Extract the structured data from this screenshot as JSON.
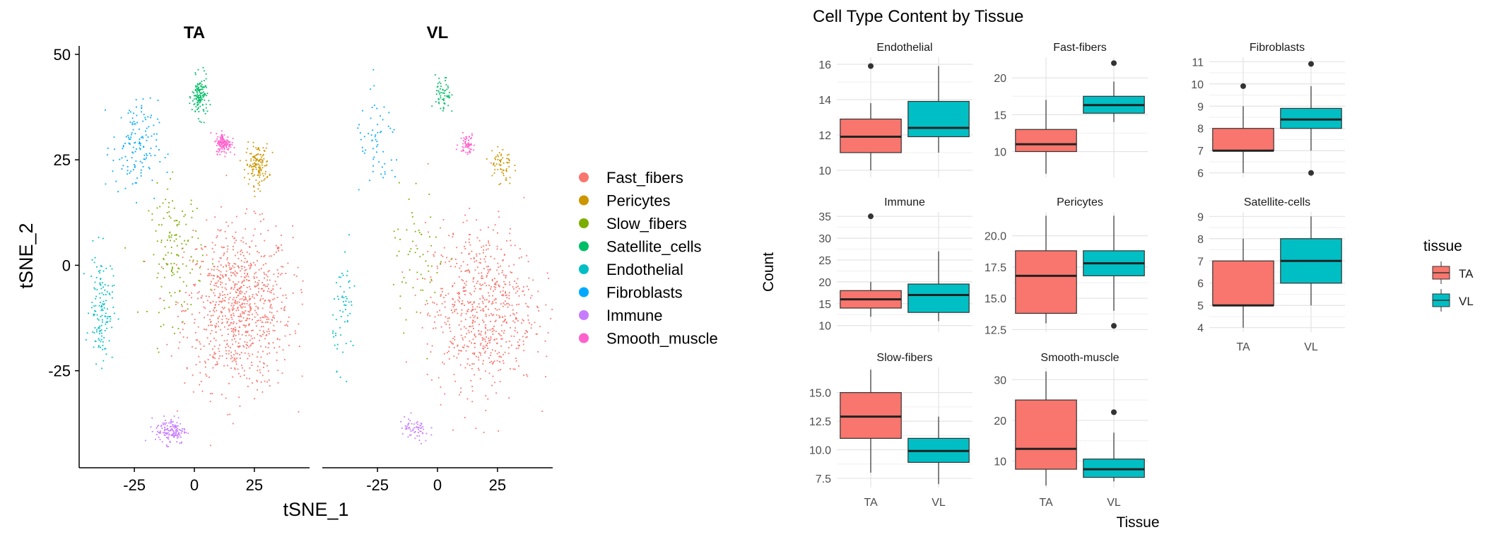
{
  "colors": {
    "Fast_fibers": "#F8766D",
    "Pericytes": "#CD9600",
    "Slow_fibers": "#7CAE00",
    "Satellite_cells": "#00BE67",
    "Endothelial": "#00BFC4",
    "Fibroblasts": "#00A9FF",
    "Immune": "#C77CFF",
    "Smooth_muscle": "#FF61CC",
    "TA": "#F8766D",
    "VL": "#00BFC4"
  },
  "chart_data": [
    {
      "type": "scatter",
      "facets": [
        "TA",
        "VL"
      ],
      "xlabel": "tSNE_1",
      "ylabel": "tSNE_2",
      "xticks": [
        -25,
        0,
        25
      ],
      "yticks": [
        50,
        25,
        0,
        -25
      ],
      "xlim": [
        -48,
        48
      ],
      "ylim": [
        -48,
        52
      ],
      "legend_position": "right",
      "legend": [
        "Fast_fibers",
        "Pericytes",
        "Slow_fibers",
        "Satellite_cells",
        "Endothelial",
        "Fibroblasts",
        "Immune",
        "Smooth_muscle"
      ],
      "clusters": [
        {
          "name": "Fast_fibers",
          "cx": 18,
          "cy": -10,
          "sx": 14,
          "sy": 12
        },
        {
          "name": "Pericytes",
          "cx": 26,
          "cy": 24,
          "sx": 3,
          "sy": 3
        },
        {
          "name": "Slow_fibers",
          "cx": -8,
          "cy": 3,
          "sx": 7,
          "sy": 10
        },
        {
          "name": "Satellite_cells",
          "cx": 2,
          "cy": 40,
          "sx": 2,
          "sy": 3
        },
        {
          "name": "Endothelial",
          "cx": -39,
          "cy": -10,
          "sx": 3,
          "sy": 8
        },
        {
          "name": "Fibroblasts",
          "cx": -25,
          "cy": 28,
          "sx": 6,
          "sy": 7
        },
        {
          "name": "Immune",
          "cx": -10,
          "cy": -39,
          "sx": 4,
          "sy": 2
        },
        {
          "name": "Smooth_muscle",
          "cx": 12,
          "cy": 29,
          "sx": 2,
          "sy": 1.5
        }
      ]
    },
    {
      "type": "box",
      "title": "Cell Type Content by Tissue",
      "xlabel": "Tissue",
      "ylabel": "Count",
      "categories": [
        "TA",
        "VL"
      ],
      "legend_title": "tissue",
      "legend": [
        "TA",
        "VL"
      ],
      "legend_position": "right",
      "panels": [
        {
          "name": "Endothelial",
          "yticks": [
            10,
            12,
            14,
            16
          ],
          "ylim": [
            9.6,
            16.4
          ],
          "TA": {
            "min": 10,
            "q1": 11,
            "median": 11.9,
            "q3": 12.9,
            "max": 13.8,
            "outliers": [
              15.9
            ]
          },
          "VL": {
            "min": 11,
            "q1": 11.9,
            "median": 12.4,
            "q3": 13.9,
            "max": 15.9,
            "outliers": []
          }
        },
        {
          "name": "Fast-fibers",
          "yticks": [
            10,
            15,
            20
          ],
          "ylim": [
            6.5,
            22.8
          ],
          "TA": {
            "min": 7,
            "q1": 10,
            "median": 11,
            "q3": 13,
            "max": 17,
            "outliers": []
          },
          "VL": {
            "min": 14,
            "q1": 15.2,
            "median": 16.3,
            "q3": 17.5,
            "max": 19.5,
            "outliers": [
              22
            ]
          }
        },
        {
          "name": "Fibroblasts",
          "yticks": [
            6,
            7,
            8,
            9,
            10,
            11
          ],
          "ylim": [
            5.8,
            11.2
          ],
          "TA": {
            "min": 6,
            "q1": 7,
            "median": 7,
            "q3": 8,
            "max": 9,
            "outliers": [
              9.9
            ]
          },
          "VL": {
            "min": 7,
            "q1": 8,
            "median": 8.4,
            "q3": 8.9,
            "max": 9.9,
            "outliers": [
              6,
              10.9
            ]
          }
        },
        {
          "name": "Immune",
          "yticks": [
            10,
            15,
            20,
            25,
            30,
            35
          ],
          "ylim": [
            8.5,
            36
          ],
          "TA": {
            "min": 12,
            "q1": 14,
            "median": 16,
            "q3": 18,
            "max": 20,
            "outliers": [
              35
            ]
          },
          "VL": {
            "min": 11,
            "q1": 13,
            "median": 17,
            "q3": 19.5,
            "max": 27,
            "outliers": []
          }
        },
        {
          "name": "Pericytes",
          "yticks": [
            12.5,
            15.0,
            17.5,
            20.0
          ],
          "ylim": [
            12.3,
            21.9
          ],
          "TA": {
            "min": 13,
            "q1": 13.8,
            "median": 16.8,
            "q3": 18.8,
            "max": 21.6,
            "outliers": []
          },
          "VL": {
            "min": 14,
            "q1": 16.8,
            "median": 17.8,
            "q3": 18.8,
            "max": 21.6,
            "outliers": [
              12.8
            ]
          }
        },
        {
          "name": "Satellite-cells",
          "yticks": [
            4,
            5,
            6,
            7,
            8,
            9
          ],
          "ylim": [
            3.8,
            9.2
          ],
          "TA": {
            "min": 4,
            "q1": 5,
            "median": 5,
            "q3": 7,
            "max": 8,
            "outliers": []
          },
          "VL": {
            "min": 5,
            "q1": 6,
            "median": 7,
            "q3": 8,
            "max": 9,
            "outliers": []
          }
        },
        {
          "name": "Slow-fibers",
          "yticks": [
            7.5,
            10.0,
            12.5,
            15.0
          ],
          "ylim": [
            6.7,
            17.2
          ],
          "TA": {
            "min": 8,
            "q1": 11,
            "median": 12.9,
            "q3": 15,
            "max": 17,
            "outliers": []
          },
          "VL": {
            "min": 7,
            "q1": 8.9,
            "median": 9.9,
            "q3": 11,
            "max": 12.9,
            "outliers": []
          }
        },
        {
          "name": "Smooth-muscle",
          "yticks": [
            10,
            20,
            30
          ],
          "ylim": [
            3.5,
            33
          ],
          "TA": {
            "min": 4,
            "q1": 8,
            "median": 13,
            "q3": 25,
            "max": 32,
            "outliers": []
          },
          "VL": {
            "min": 5,
            "q1": 6,
            "median": 8,
            "q3": 10.5,
            "max": 17,
            "outliers": [
              22
            ]
          }
        }
      ]
    }
  ]
}
